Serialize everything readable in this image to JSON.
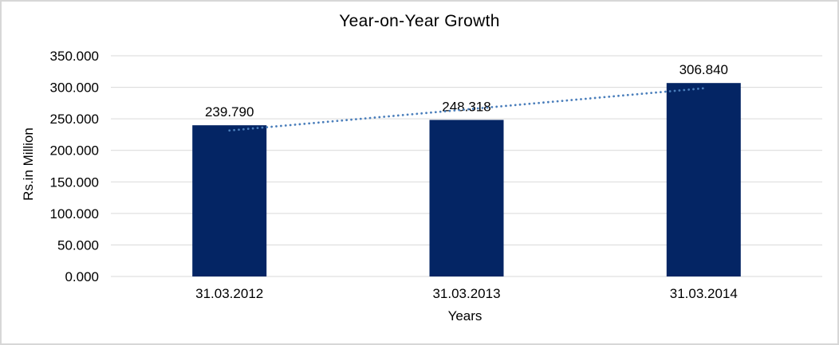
{
  "chart_data": {
    "type": "bar",
    "title": "Year-on-Year Growth",
    "xlabel": "Years",
    "ylabel": "Rs.in Million",
    "categories": [
      "31.03.2012",
      "31.03.2013",
      "31.03.2014"
    ],
    "series": [
      {
        "name": "Year-on-Year Growth",
        "values": [
          239.79,
          248.318,
          306.84
        ],
        "data_labels": [
          "239.790",
          "248.318",
          "306.840"
        ]
      }
    ],
    "ylim": [
      0,
      350
    ],
    "y_ticks": [
      0,
      50,
      100,
      150,
      200,
      250,
      300,
      350
    ],
    "y_tick_labels": [
      "0.000",
      "50.000",
      "100.000",
      "150.000",
      "200.000",
      "250.000",
      "300.000",
      "350.000"
    ],
    "grid": true,
    "legend_position": "none",
    "trendline": {
      "type": "linear",
      "style": "dotted"
    }
  },
  "colors": {
    "bar_fill": "#042564",
    "trendline": "#4A7EBB",
    "gridline": "#D9D9D9",
    "axis_text": "#000000",
    "frame_border": "#D7D7D7",
    "background": "#FFFFFF"
  }
}
